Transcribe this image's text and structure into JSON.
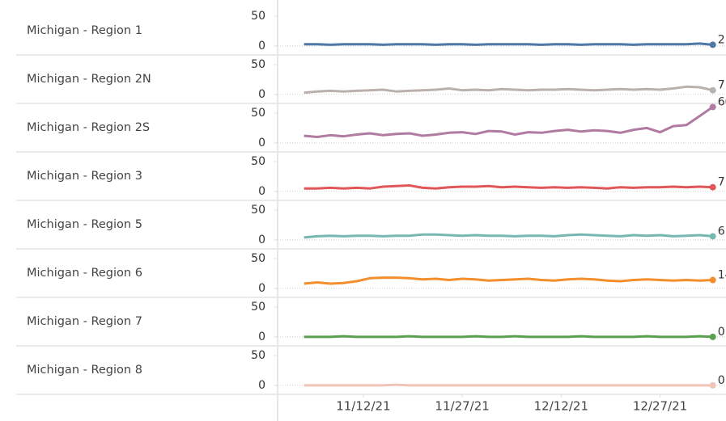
{
  "chart_data": {
    "type": "line",
    "x": [
      "2021-11-03",
      "2021-11-05",
      "2021-11-07",
      "2021-11-09",
      "2021-11-11",
      "2021-11-13",
      "2021-11-15",
      "2021-11-17",
      "2021-11-19",
      "2021-11-21",
      "2021-11-23",
      "2021-11-25",
      "2021-11-27",
      "2021-11-29",
      "2021-12-01",
      "2021-12-03",
      "2021-12-05",
      "2021-12-07",
      "2021-12-09",
      "2021-12-11",
      "2021-12-13",
      "2021-12-15",
      "2021-12-17",
      "2021-12-19",
      "2021-12-21",
      "2021-12-23",
      "2021-12-25",
      "2021-12-27",
      "2021-12-29",
      "2021-12-31",
      "2022-01-02",
      "2022-01-04"
    ],
    "xlim": [
      "2021-10-30",
      "2022-01-06"
    ],
    "xticks": [
      {
        "value": "2021-11-12",
        "label": "11/12/21"
      },
      {
        "value": "2021-11-27",
        "label": "11/27/21"
      },
      {
        "value": "2021-12-12",
        "label": "12/12/21"
      },
      {
        "value": "2021-12-27",
        "label": "12/27/21"
      }
    ],
    "ylim": [
      -15,
      66
    ],
    "yticks": [
      0,
      50
    ],
    "series": [
      {
        "name": "Michigan - Region 1",
        "color": "#4e79a7",
        "values": [
          3,
          3,
          2,
          3,
          3,
          3,
          2,
          3,
          3,
          3,
          2,
          3,
          3,
          2,
          3,
          3,
          3,
          3,
          2,
          3,
          3,
          2,
          3,
          3,
          3,
          2,
          3,
          3,
          3,
          3,
          4,
          2
        ]
      },
      {
        "name": "Michigan - Region 2N",
        "color": "#bab0ac",
        "values": [
          3,
          5,
          6,
          5,
          6,
          7,
          8,
          5,
          6,
          7,
          8,
          10,
          7,
          8,
          7,
          9,
          8,
          7,
          8,
          8,
          9,
          8,
          7,
          8,
          9,
          8,
          9,
          8,
          10,
          13,
          12,
          7
        ]
      },
      {
        "name": "Michigan - Region 2S",
        "color": "#b07aa1",
        "values": [
          12,
          10,
          13,
          11,
          14,
          16,
          13,
          15,
          16,
          12,
          14,
          17,
          18,
          15,
          20,
          19,
          14,
          18,
          17,
          20,
          22,
          19,
          21,
          20,
          17,
          22,
          25,
          18,
          28,
          30,
          45,
          60
        ]
      },
      {
        "name": "Michigan - Region 3",
        "color": "#e15759",
        "values": [
          5,
          5,
          6,
          5,
          6,
          5,
          8,
          9,
          10,
          6,
          5,
          7,
          8,
          8,
          9,
          7,
          8,
          7,
          6,
          7,
          6,
          7,
          6,
          5,
          7,
          6,
          7,
          7,
          8,
          7,
          8,
          7
        ]
      },
      {
        "name": "Michigan - Region 5",
        "color": "#76b7b2",
        "values": [
          4,
          6,
          7,
          6,
          7,
          7,
          6,
          7,
          7,
          9,
          9,
          8,
          7,
          8,
          7,
          7,
          6,
          7,
          7,
          6,
          8,
          9,
          8,
          7,
          6,
          8,
          7,
          8,
          6,
          7,
          8,
          6
        ]
      },
      {
        "name": "Michigan - Region 6",
        "color": "#f28e2b",
        "values": [
          8,
          10,
          8,
          9,
          12,
          17,
          18,
          18,
          17,
          15,
          16,
          14,
          16,
          15,
          13,
          14,
          15,
          16,
          14,
          13,
          15,
          16,
          15,
          13,
          12,
          14,
          15,
          14,
          13,
          14,
          13,
          14
        ]
      },
      {
        "name": "Michigan - Region 7",
        "color": "#59a14f",
        "values": [
          0,
          0,
          0,
          1,
          0,
          0,
          0,
          0,
          1,
          0,
          0,
          0,
          0,
          1,
          0,
          0,
          1,
          0,
          0,
          0,
          0,
          1,
          0,
          0,
          0,
          0,
          1,
          0,
          0,
          0,
          1,
          0
        ]
      },
      {
        "name": "Michigan - Region 8",
        "color": "#f1c4b8",
        "values": [
          0,
          0,
          0,
          0,
          0,
          0,
          0,
          1,
          0,
          0,
          0,
          0,
          0,
          0,
          0,
          0,
          0,
          0,
          0,
          0,
          0,
          0,
          0,
          0,
          0,
          0,
          0,
          0,
          0,
          0,
          0,
          0
        ]
      }
    ]
  }
}
